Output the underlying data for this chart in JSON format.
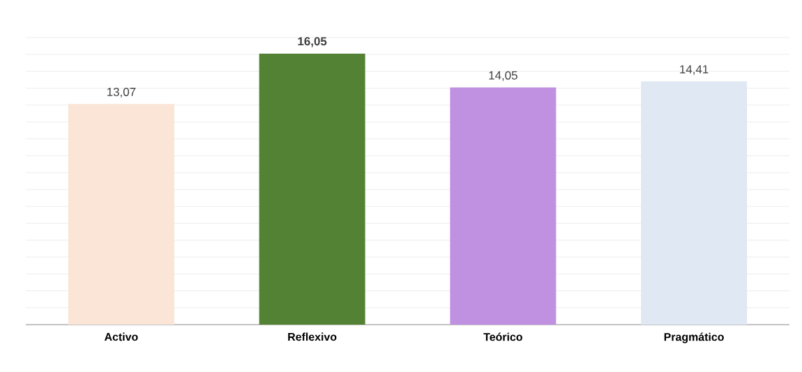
{
  "chart_data": {
    "type": "bar",
    "categories": [
      "Activo",
      "Reflexivo",
      "Teórico",
      "Pragmático"
    ],
    "values": [
      13.07,
      16.05,
      14.05,
      14.41
    ],
    "colors": [
      "#fae5d7",
      "#548235",
      "#bf91e0",
      "#e0e8f4"
    ],
    "value_labels": [
      "13,07",
      "**16,05**",
      "14,05",
      "14,41"
    ],
    "grid": "y",
    "tick_labels": "x"
  }
}
